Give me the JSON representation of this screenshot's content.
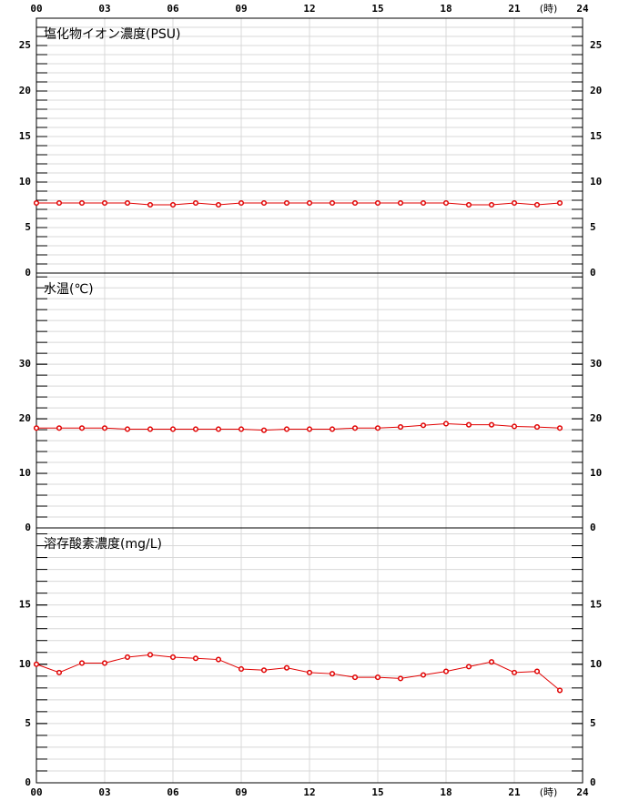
{
  "chart_data": [
    {
      "type": "line",
      "title": "塩化物イオン濃度(PSU)",
      "xlabel": "(時)",
      "color": "#e00000",
      "grid": true,
      "x": [
        0,
        1,
        2,
        3,
        4,
        5,
        6,
        7,
        8,
        9,
        10,
        11,
        12,
        13,
        14,
        15,
        16,
        17,
        18,
        19,
        20,
        21,
        22,
        23
      ],
      "values": [
        7.7,
        7.7,
        7.7,
        7.7,
        7.7,
        7.5,
        7.5,
        7.7,
        7.5,
        7.7,
        7.7,
        7.7,
        7.7,
        7.7,
        7.7,
        7.7,
        7.7,
        7.7,
        7.7,
        7.5,
        7.5,
        7.7,
        7.5,
        7.7
      ],
      "xlim": [
        0,
        24
      ],
      "xticks": [
        {
          "value": 0,
          "label": "00"
        },
        {
          "value": 3,
          "label": "03"
        },
        {
          "value": 6,
          "label": "06"
        },
        {
          "value": 9,
          "label": "09"
        },
        12,
        15,
        18,
        21,
        24
      ],
      "ylim": [
        0,
        28
      ],
      "yticks": [
        0,
        5,
        10,
        15,
        20,
        25
      ],
      "minor_step": 1
    },
    {
      "type": "line",
      "title": "水温(℃)",
      "color": "#e00000",
      "grid": true,
      "x": [
        0,
        1,
        2,
        3,
        4,
        5,
        6,
        7,
        8,
        9,
        10,
        11,
        12,
        13,
        14,
        15,
        16,
        17,
        18,
        19,
        20,
        21,
        22,
        23
      ],
      "values": [
        18.3,
        18.3,
        18.3,
        18.3,
        18.1,
        18.1,
        18.1,
        18.1,
        18.1,
        18.1,
        17.9,
        18.1,
        18.1,
        18.1,
        18.3,
        18.3,
        18.5,
        18.8,
        19.1,
        18.9,
        18.9,
        18.6,
        18.5,
        18.3
      ],
      "xlim": [
        0,
        24
      ],
      "xticks": [
        {
          "value": 0,
          "label": "00"
        },
        {
          "value": 3,
          "label": "03"
        },
        {
          "value": 6,
          "label": "06"
        },
        {
          "value": 9,
          "label": "09"
        },
        12,
        15,
        18,
        21,
        24
      ],
      "ylim": [
        0,
        46.7
      ],
      "yticks": [
        0,
        10,
        20,
        30
      ],
      "minor_step": 2
    },
    {
      "type": "line",
      "title": "溶存酸素濃度(mg/L)",
      "xlabel": "(時)",
      "color": "#e00000",
      "grid": true,
      "x": [
        0,
        1,
        2,
        3,
        4,
        5,
        6,
        7,
        8,
        9,
        10,
        11,
        12,
        13,
        14,
        15,
        16,
        17,
        18,
        19,
        20,
        21,
        22,
        23
      ],
      "values": [
        10.0,
        9.3,
        10.1,
        10.1,
        10.6,
        10.8,
        10.6,
        10.5,
        10.4,
        9.6,
        9.5,
        9.7,
        9.3,
        9.2,
        8.9,
        8.9,
        8.8,
        9.1,
        9.4,
        9.8,
        10.2,
        9.3,
        9.4,
        7.8
      ],
      "xlim": [
        0,
        24
      ],
      "xticks": [
        {
          "value": 0,
          "label": "00"
        },
        {
          "value": 3,
          "label": "03"
        },
        {
          "value": 6,
          "label": "06"
        },
        {
          "value": 9,
          "label": "09"
        },
        12,
        15,
        18,
        21,
        24
      ],
      "ylim": [
        0,
        21.5
      ],
      "yticks": [
        0,
        5,
        10,
        15
      ],
      "minor_step": 1
    }
  ]
}
